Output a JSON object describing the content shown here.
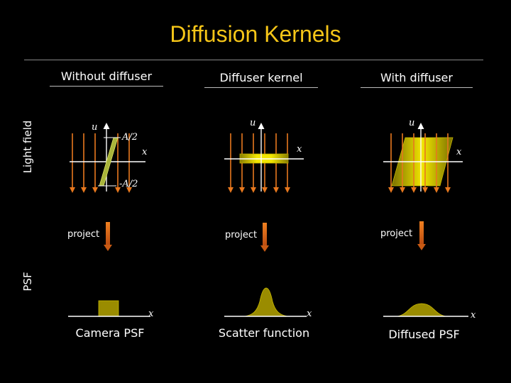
{
  "title": "Diffusion Kernels",
  "row_labels": {
    "light_field": "Light field",
    "psf": "PSF"
  },
  "columns": [
    {
      "heading": "Without diffuser",
      "u_label": "u",
      "x_label": "x",
      "upper_mark": "A/2",
      "lower_mark": "-A/2",
      "project_label": "project",
      "psf_x_label": "x",
      "caption": "Camera PSF"
    },
    {
      "heading": "Diffuser kernel",
      "u_label": "u",
      "x_label": "x",
      "project_label": "project",
      "psf_x_label": "x",
      "caption": "Scatter function"
    },
    {
      "heading": "With diffuser",
      "u_label": "u",
      "x_label": "x",
      "project_label": "project",
      "psf_x_label": "x",
      "caption": "Diffused PSF"
    }
  ],
  "colors": {
    "title": "#F5C518",
    "ray_arrow": "#E8781E",
    "project_arrow": "#E0701A",
    "kernel_fill": "#F2E600",
    "psf_fill": "#9A8C00",
    "axis": "#ffffff"
  }
}
